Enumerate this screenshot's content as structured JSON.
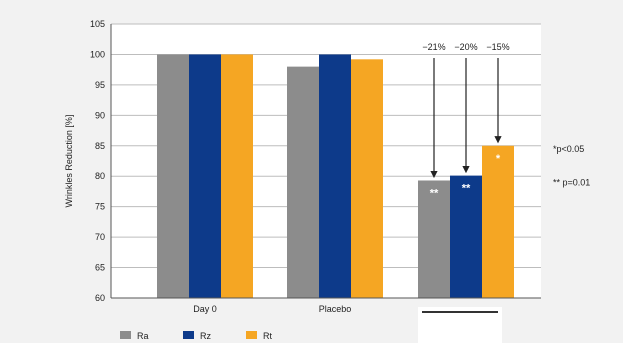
{
  "chart_data": {
    "type": "bar",
    "categories": [
      "Day 0",
      "Placebo",
      ""
    ],
    "series": [
      {
        "name": "Ra",
        "values": [
          100,
          98,
          79.3
        ],
        "color": "#8c8c8c"
      },
      {
        "name": "Rz",
        "values": [
          100,
          100,
          80.1
        ],
        "color": "#0d3a8a"
      },
      {
        "name": "Rt",
        "values": [
          100,
          99.2,
          85
        ],
        "color": "#f5a623"
      }
    ],
    "ylabel": "Wrinkles Reduction [%]",
    "ylim": [
      60,
      105
    ],
    "yticks": [
      60,
      65,
      70,
      75,
      80,
      85,
      90,
      95,
      100,
      105
    ],
    "grid": true,
    "legend_position": "bottom-left",
    "annotations": [
      {
        "category": 2,
        "series": 0,
        "text": "−21%"
      },
      {
        "category": 2,
        "series": 1,
        "text": "−20%"
      },
      {
        "category": 2,
        "series": 2,
        "text": "−15%"
      }
    ],
    "bar_labels": [
      {
        "category": 2,
        "series": 0,
        "text": "**"
      },
      {
        "category": 2,
        "series": 1,
        "text": "**"
      },
      {
        "category": 2,
        "series": 2,
        "text": "*"
      }
    ],
    "significance_notes": [
      "*p<0.05",
      "** p=0.01"
    ]
  }
}
